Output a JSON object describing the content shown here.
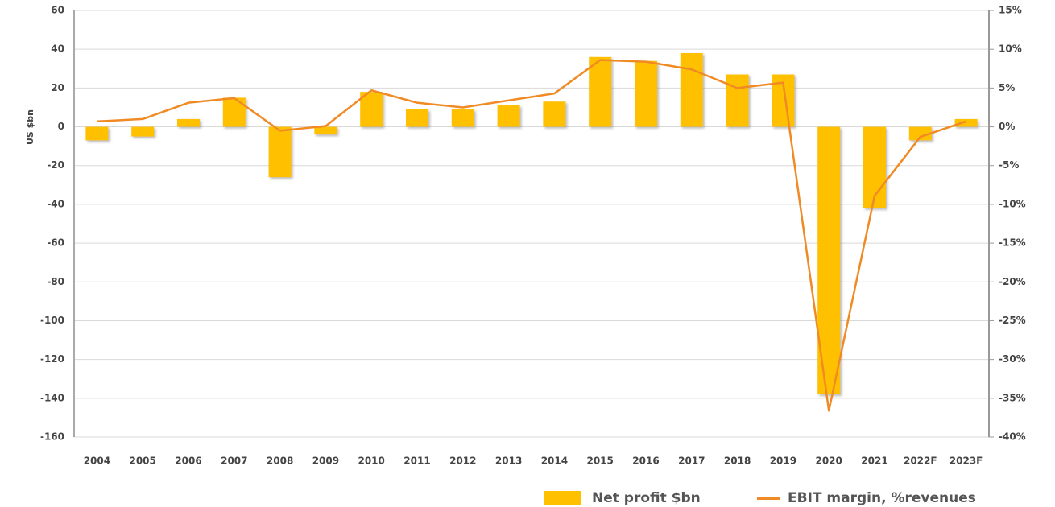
{
  "chart_data": {
    "type": "bar_line",
    "y_label": "US $bn",
    "categories": [
      "2004",
      "2005",
      "2006",
      "2007",
      "2008",
      "2009",
      "2010",
      "2011",
      "2012",
      "2013",
      "2014",
      "2015",
      "2016",
      "2017",
      "2018",
      "2019",
      "2020",
      "2021",
      "2022F",
      "2023F"
    ],
    "series": [
      {
        "name": "Net profit $bn",
        "type": "bar",
        "color": "#ffc000",
        "axis": "y",
        "values": [
          -7,
          -5,
          4,
          15,
          -26,
          -4,
          18,
          9,
          9,
          11,
          13,
          36,
          34,
          38,
          27,
          27,
          -138,
          -42,
          -7,
          4
        ]
      },
      {
        "name": "EBIT margin, %revenues",
        "type": "line",
        "color": "#f08a24",
        "axis": "y2",
        "values": [
          0.7,
          1.0,
          3.1,
          3.7,
          -0.5,
          0.1,
          4.7,
          3.1,
          2.5,
          3.4,
          4.3,
          8.6,
          8.4,
          7.4,
          5.0,
          5.7,
          -36.6,
          -8.9,
          -1.3,
          0.7
        ]
      }
    ],
    "ylim": [
      -160,
      60
    ],
    "yticks": [
      -160,
      -140,
      -120,
      -100,
      -80,
      -60,
      -40,
      -20,
      0,
      20,
      40,
      60
    ],
    "y2lim": [
      -40,
      15
    ],
    "y2ticks": [
      {
        "value": -40,
        "label": "-40%"
      },
      {
        "value": -35,
        "label": "-35%"
      },
      {
        "value": -30,
        "label": "-30%"
      },
      {
        "value": -25,
        "label": "-25%"
      },
      {
        "value": -20,
        "label": "-20%"
      },
      {
        "value": -15,
        "label": "-15%"
      },
      {
        "value": -10,
        "label": "-10%"
      },
      {
        "value": -5,
        "label": "-5%"
      },
      {
        "value": 0,
        "label": "0%"
      },
      {
        "value": 5,
        "label": "5%"
      },
      {
        "value": 10,
        "label": "10%"
      },
      {
        "value": 15,
        "label": "15%"
      }
    ],
    "grid": true
  }
}
